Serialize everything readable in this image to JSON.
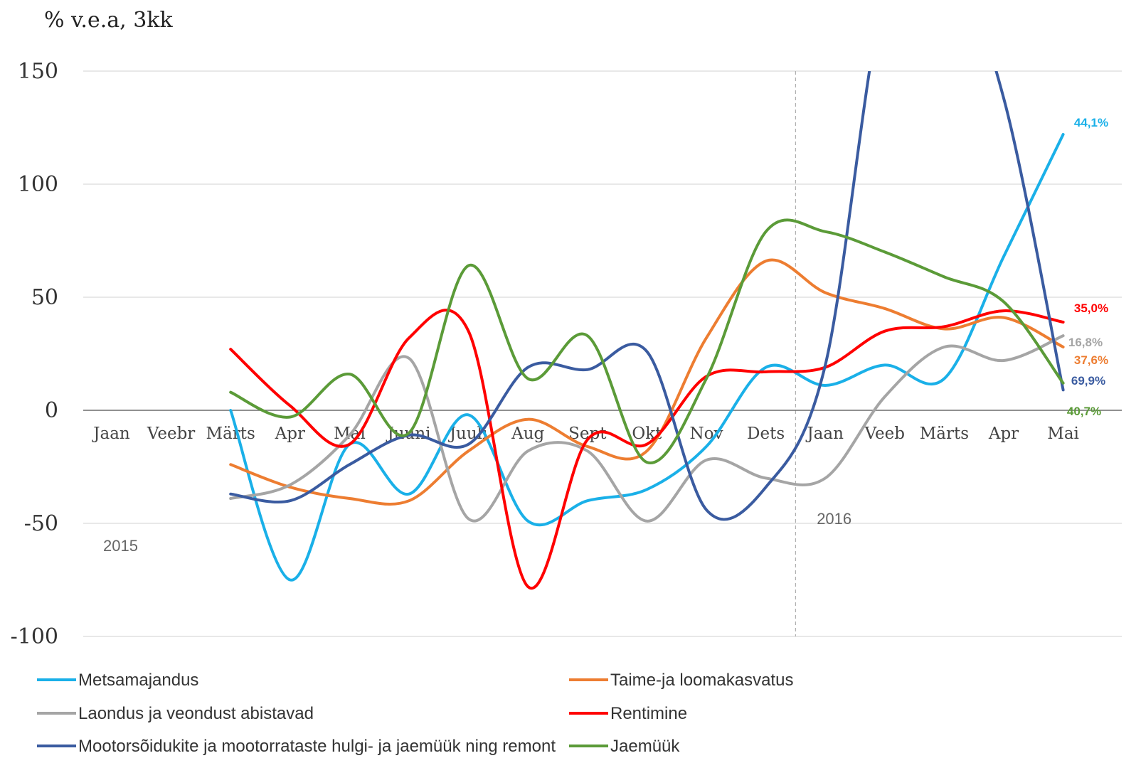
{
  "chart_data": {
    "type": "line",
    "unit_label": "% v.e.a, 3kk",
    "ylim": [
      -100,
      150
    ],
    "yticks": [
      150,
      100,
      50,
      0,
      -50,
      -100
    ],
    "categories": [
      "Jaan",
      "Veebr",
      "Märts",
      "Apr",
      "Mai",
      "Juuni",
      "Juuli",
      "Aug",
      "Sept",
      "Okt",
      "Nov",
      "Dets",
      "Jaan",
      "Veeb",
      "Märts",
      "Apr",
      "Mai"
    ],
    "year_labels": [
      {
        "text": "2015",
        "category_index": 0
      },
      {
        "text": "2016",
        "category_index": 12
      }
    ],
    "year_divider_index": 11.5,
    "grid": true,
    "legend_position": "bottom",
    "series": [
      {
        "name": "Metsamajandus",
        "color": "#1ab0e8",
        "values": [
          null,
          null,
          0,
          -75,
          -15,
          -37,
          -2,
          -49,
          -40,
          -35,
          -16,
          19,
          11,
          20,
          14,
          68,
          122
        ],
        "end_label": "44,1%"
      },
      {
        "name": "Taime-ja loomakasvatus",
        "color": "#ed7d31",
        "values": [
          null,
          null,
          -24,
          -34,
          -39,
          -40,
          -18,
          -4,
          -16,
          -18,
          32,
          66,
          52,
          45,
          36,
          41,
          28
        ],
        "end_label": "37,6%"
      },
      {
        "name": "Laondus ja veondust abistavad",
        "color": "#a5a5a5",
        "values": [
          null,
          null,
          -39,
          -33,
          -11,
          23,
          -48,
          -18,
          -18,
          -49,
          -22,
          -30,
          -30,
          6,
          28,
          22,
          33
        ],
        "end_label": "16,8%"
      },
      {
        "name": "Rentimine",
        "color": "#ff0000",
        "values": [
          null,
          null,
          27,
          2,
          -15,
          32,
          35,
          -78,
          -13,
          -15,
          15,
          17,
          19,
          35,
          37,
          44,
          39
        ],
        "end_label": "35,0%"
      },
      {
        "name": "Mootorsõidukite ja mootorrataste hulgi- ja jaemüük ning remont",
        "color": "#3a5ba0",
        "values": [
          null,
          null,
          -37,
          -40,
          -24,
          -11,
          -15,
          19,
          18,
          26,
          -44,
          -34,
          20,
          185,
          205,
          138,
          9
        ],
        "end_label": "69,9%"
      },
      {
        "name": "Jaemüük",
        "color": "#5b9b38",
        "values": [
          null,
          null,
          8,
          -3,
          16,
          -10,
          64,
          14,
          33,
          -23,
          14,
          79,
          79,
          70,
          59,
          48,
          12
        ],
        "end_label": "40,7%"
      }
    ]
  }
}
